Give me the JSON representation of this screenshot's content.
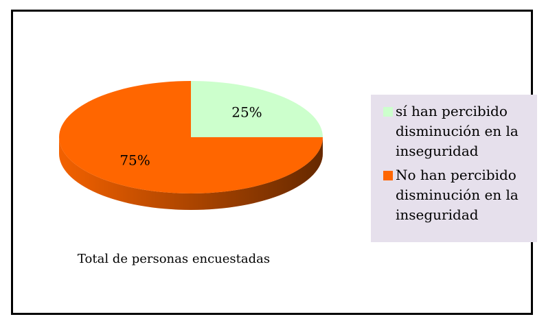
{
  "chart_data": {
    "type": "pie",
    "title": "Total de personas encuestadas",
    "categories": [
      "sí han percibido disminución en la inseguridad",
      "No han percibido disminución en la inseguridad"
    ],
    "values": [
      25,
      75
    ],
    "value_labels": [
      "25%",
      "75%"
    ],
    "colors": [
      "#ccffcc",
      "#ff6600"
    ],
    "legend": "right"
  }
}
